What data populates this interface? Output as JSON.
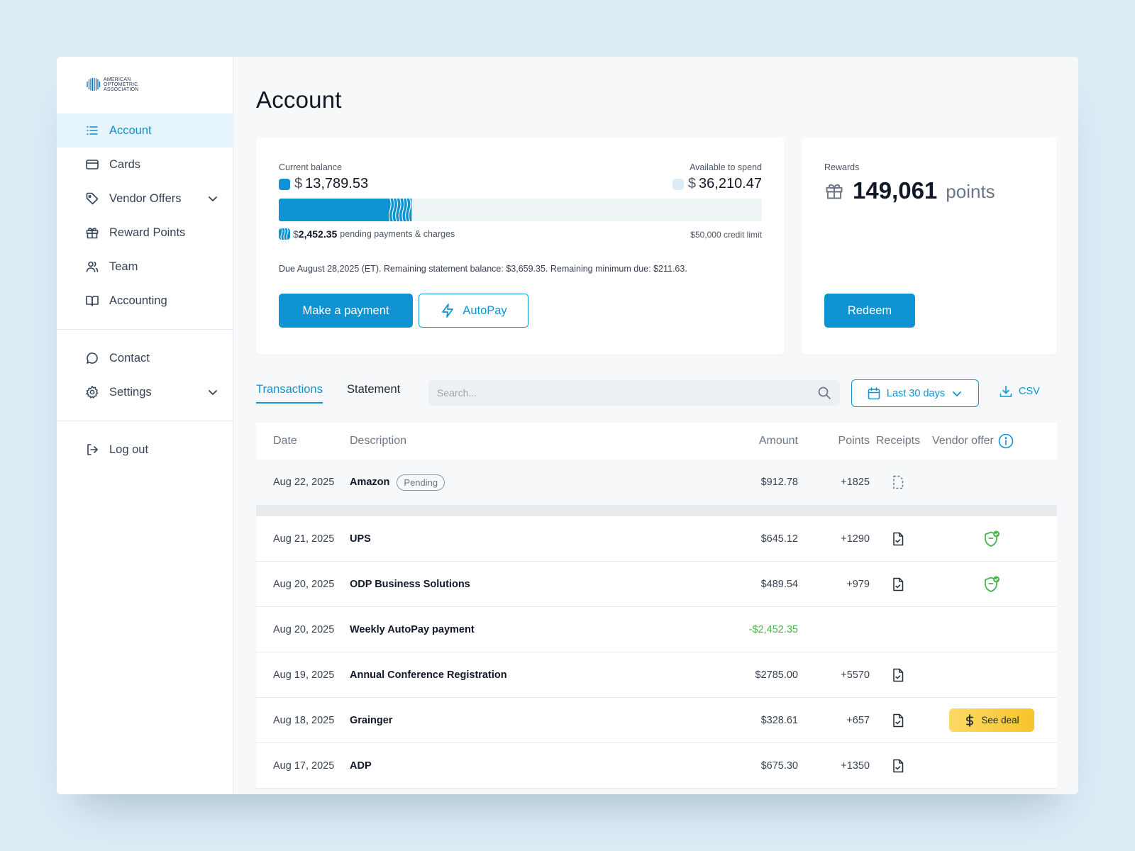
{
  "logo": {
    "text": "American Optometric Association"
  },
  "sidebar": {
    "items": [
      {
        "label": "Account",
        "icon": "list-icon"
      },
      {
        "label": "Cards",
        "icon": "card-icon"
      },
      {
        "label": "Vendor Offers",
        "icon": "tag-icon"
      },
      {
        "label": "Reward Points",
        "icon": "gift-icon"
      },
      {
        "label": "Team",
        "icon": "team-icon"
      },
      {
        "label": "Accounting",
        "icon": "book-icon"
      },
      {
        "label": "Contact",
        "icon": "chat-icon"
      },
      {
        "label": "Settings",
        "icon": "gear-icon"
      },
      {
        "label": "Log out",
        "icon": "logout-icon"
      }
    ]
  },
  "page": {
    "title": "Account"
  },
  "balance": {
    "current_label": "Current balance",
    "current_amount": "13,789.53",
    "available_label": "Available to spend",
    "available_amount": "36,210.47",
    "currency": "$",
    "pending_amount": "2,452.35",
    "pending_label": "pending payments & charges",
    "credit_limit": "$50,000 credit limit",
    "used_fraction": 0.2758,
    "pending_fraction": 0.049,
    "due_text": "Due August 28,2025 (ET). Remaining statement balance: $3,659.35. Remaining minimum due: $211.63.",
    "make_payment_label": "Make a payment",
    "autopay_label": "AutoPay",
    "accent_color": "#0f93d2",
    "available_color": "#dcedf6"
  },
  "rewards": {
    "label": "Rewards",
    "points": "149,061",
    "unit": "points",
    "redeem_label": "Redeem"
  },
  "tabs": {
    "transactions": "Transactions",
    "statement": "Statement"
  },
  "toolbar": {
    "search_placeholder": "Search...",
    "date_range": "Last 30 days",
    "csv_label": "CSV"
  },
  "table": {
    "headers": {
      "date": "Date",
      "description": "Description",
      "amount": "Amount",
      "points": "Points",
      "receipts": "Receipts",
      "vendor_offer": "Vendor offer"
    },
    "pending_row": {
      "date": "Aug 22, 2025",
      "description": "Amazon",
      "status": "Pending",
      "amount": "$912.78",
      "points": "+1825"
    },
    "rows": [
      {
        "date": "Aug 21, 2025",
        "description": "UPS",
        "amount": "$645.12",
        "points": "+1290",
        "receipt": true,
        "vendor": "shield"
      },
      {
        "date": "Aug 20, 2025",
        "description": "ODP Business Solutions",
        "amount": "$489.54",
        "points": "+979",
        "receipt": true,
        "vendor": "shield"
      },
      {
        "date": "Aug 20, 2025",
        "description": "Weekly AutoPay payment",
        "amount": "-$2,452.35",
        "points": "",
        "receipt": false,
        "vendor": ""
      },
      {
        "date": "Aug 19, 2025",
        "description": "Annual Conference Registration",
        "amount": "$2785.00",
        "points": "+5570",
        "receipt": true,
        "vendor": ""
      },
      {
        "date": "Aug 18, 2025",
        "description": "Grainger",
        "amount": "$328.61",
        "points": "+657",
        "receipt": true,
        "vendor": "deal"
      },
      {
        "date": "Aug 17, 2025",
        "description": "ADP",
        "amount": "$675.30",
        "points": "+1350",
        "receipt": true,
        "vendor": ""
      }
    ],
    "deal_label": "See deal",
    "negative_color": "#49b548",
    "deal_color": "#f7c42b"
  }
}
